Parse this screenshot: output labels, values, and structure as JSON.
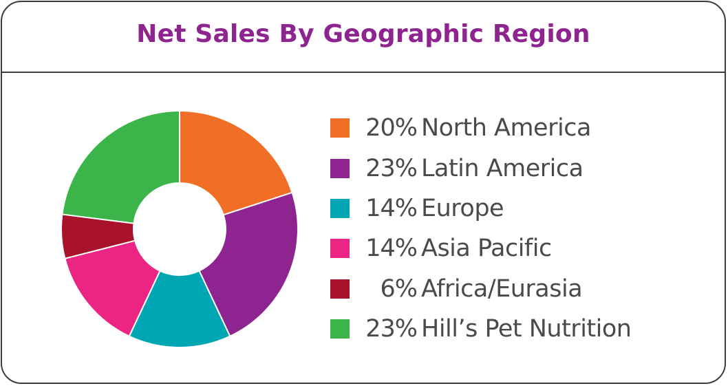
{
  "chart_data": {
    "type": "pie",
    "title": "Net Sales By Geographic Region",
    "categories": [
      "North America",
      "Latin America",
      "Europe",
      "Asia Pacific",
      "Africa/Eurasia",
      "Hill’s Pet Nutrition"
    ],
    "values": [
      20,
      23,
      14,
      14,
      6,
      23
    ],
    "value_labels": [
      "20%",
      "23%",
      "14%",
      "14%",
      "6%",
      "23%"
    ],
    "colors": [
      "#f06e26",
      "#8e248f",
      "#00a6b4",
      "#ec2584",
      "#a8122a",
      "#3bb44a"
    ],
    "donut": true,
    "legend_position": "right"
  }
}
